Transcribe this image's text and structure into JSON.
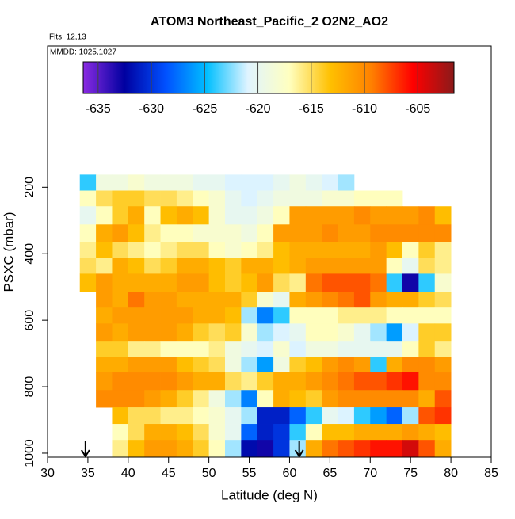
{
  "chart_data": {
    "type": "heatmap",
    "title": "ATOM3 Northeast_Pacific_2 O2N2_AO2",
    "subtitle": "Flts: 12,13",
    "annotation": "MMDD: 1025,1027",
    "xlabel": "Latitude (deg N)",
    "ylabel": "PSXC (mbar)",
    "xlim": [
      30,
      85
    ],
    "xticks": [
      30,
      35,
      40,
      45,
      50,
      55,
      60,
      65,
      70,
      75,
      80,
      85
    ],
    "ylim": [
      1012,
      -225
    ],
    "yticks": [
      200,
      400,
      600,
      800,
      1000
    ],
    "x": [
      34,
      36,
      38,
      40,
      42,
      44,
      46,
      48,
      50,
      52,
      54,
      56,
      58,
      60,
      62,
      64,
      66,
      68,
      70,
      72,
      74,
      76,
      78,
      80
    ],
    "y": [
      162,
      210,
      257,
      312,
      364,
      412,
      460,
      514,
      562,
      610,
      662,
      710,
      757,
      810,
      862,
      912,
      960,
      1012
    ],
    "z": [
      [
        -624,
        -619,
        -619,
        -618,
        -619,
        -619,
        -619,
        -620,
        -620,
        -621,
        -621,
        -621,
        -620,
        -619,
        -620,
        -621,
        -622,
        null,
        null,
        null,
        null,
        null,
        null
      ],
      [
        -617,
        -615,
        -614,
        -614,
        -615,
        -615,
        -616,
        -617,
        -618,
        -620,
        -621,
        -620,
        -619,
        -619,
        -619,
        -618,
        -618,
        -617,
        -617,
        -617,
        null,
        null,
        null
      ],
      [
        -620,
        -617,
        -614,
        -612,
        -617,
        -613,
        -612,
        -613,
        -618,
        -620,
        -620,
        -619,
        -617,
        -611,
        -611,
        -611,
        -611,
        -610,
        -611,
        -611,
        -611,
        -610,
        -613
      ],
      [
        -617,
        -612,
        -611,
        -613,
        -616,
        -617,
        -617,
        -618,
        -618,
        -618,
        -619,
        -617,
        -611,
        -611,
        -611,
        -610,
        -611,
        -611,
        -610,
        -610,
        -610,
        -610,
        -610
      ],
      [
        -616,
        -613,
        -615,
        -616,
        -617,
        -616,
        -615,
        -615,
        -617,
        -618,
        -617,
        -616,
        -613,
        -612,
        -612,
        -612,
        -612,
        -612,
        -611,
        -613,
        -617,
        -614,
        -616
      ],
      [
        -615,
        -616,
        -612,
        -613,
        -615,
        -614,
        -612,
        -612,
        -613,
        -614,
        -612,
        -612,
        -613,
        -612,
        -611,
        -611,
        -611,
        -611,
        -611,
        -617,
        -620,
        -615,
        -616
      ],
      [
        -613,
        -611,
        -612,
        -612,
        -612,
        -612,
        -611,
        -611,
        -613,
        -614,
        -613,
        -611,
        -615,
        -616,
        -609,
        -608,
        -608,
        -608,
        -609,
        -624,
        -633,
        -624,
        -618
      ],
      [
        null,
        -611,
        -612,
        -609,
        -611,
        -611,
        -612,
        -612,
        -612,
        -612,
        -614,
        -618,
        -620,
        -612,
        -611,
        -610,
        -609,
        -608,
        -611,
        -612,
        -612,
        -614,
        -615
      ],
      [
        null,
        -612,
        -611,
        -611,
        -611,
        -611,
        -611,
        -612,
        -612,
        -613,
        -622,
        -627,
        -624,
        -617,
        -617,
        -617,
        -616,
        -616,
        -616,
        -617,
        -617,
        -617,
        -617
      ],
      [
        null,
        -611,
        -612,
        -611,
        -611,
        -611,
        -612,
        -614,
        -615,
        -614,
        -618,
        -622,
        -621,
        -620,
        -617,
        -617,
        -618,
        -620,
        -622,
        -626,
        -621,
        -614,
        -614
      ],
      [
        null,
        -614,
        -614,
        -616,
        -616,
        -617,
        -617,
        -617,
        -616,
        -619,
        -620,
        -621,
        -618,
        -621,
        -619,
        -619,
        -620,
        -620,
        -620,
        -620,
        -617,
        -614,
        -616
      ],
      [
        null,
        -612,
        -612,
        -611,
        -611,
        -611,
        -613,
        -614,
        -615,
        -619,
        -622,
        -626,
        -619,
        -614,
        -613,
        -611,
        -610,
        -611,
        -624,
        -612,
        -610,
        -610,
        -611
      ],
      [
        null,
        -611,
        -610,
        -610,
        -610,
        -610,
        -611,
        -612,
        -612,
        -615,
        -616,
        -614,
        -612,
        -612,
        -611,
        -610,
        -609,
        -608,
        -608,
        -607,
        -606,
        -610,
        -610
      ],
      [
        null,
        -610,
        -610,
        -610,
        -611,
        -612,
        -614,
        -616,
        -619,
        -622,
        -627,
        -617,
        -612,
        -613,
        -614,
        -611,
        -610,
        -610,
        -610,
        -610,
        -610,
        -612,
        -608
      ],
      [
        null,
        null,
        -613,
        -615,
        -615,
        -616,
        -616,
        -617,
        -618,
        -620,
        -622,
        -631,
        -631,
        -628,
        -624,
        -620,
        -621,
        -624,
        -626,
        -628,
        -622,
        -608,
        -607
      ],
      [
        null,
        null,
        -617,
        -615,
        -612,
        -612,
        -613,
        -615,
        -618,
        -620,
        -628,
        -631,
        -630,
        -624,
        -617,
        -613,
        -613,
        -612,
        -612,
        -612,
        -611,
        -612,
        -613
      ],
      [
        null,
        null,
        -616,
        -613,
        -611,
        -611,
        -612,
        -614,
        -617,
        -622,
        -632,
        -633,
        -630,
        -622,
        -612,
        -609,
        -608,
        -607,
        -606,
        -606,
        -604,
        -608,
        -612
      ]
    ],
    "zlim": [
      -636.4,
      -601.6
    ],
    "zticks": [
      -635,
      -630,
      -625,
      -620,
      -615,
      -610,
      -605
    ],
    "colorscale": [
      "#8a2be2",
      "#0000a0",
      "#0050ff",
      "#00bfff",
      "#e0f4ff",
      "#ffffc0",
      "#ffc000",
      "#ff8000",
      "#ff0000",
      "#8b1a1a"
    ],
    "markers": {
      "x": [
        34.7,
        61.2
      ]
    }
  }
}
